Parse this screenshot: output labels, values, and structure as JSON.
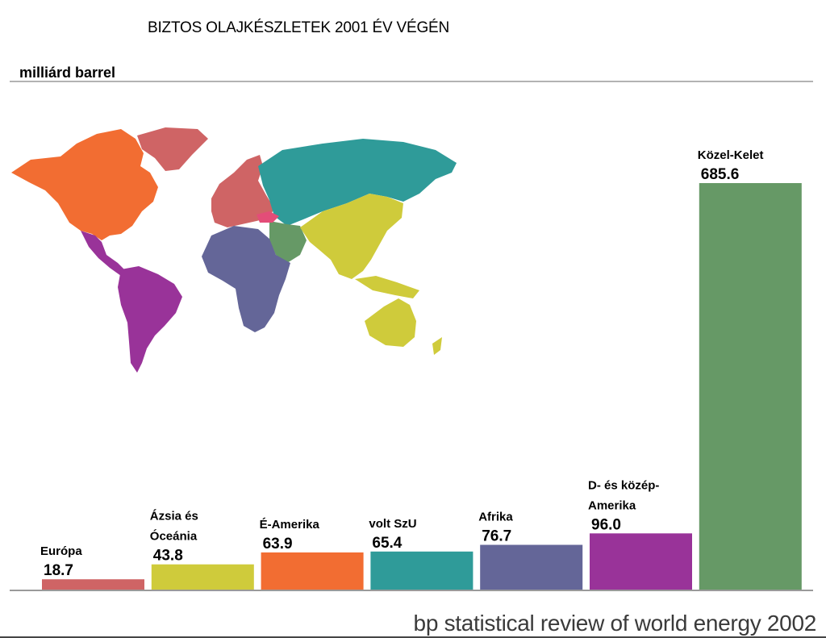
{
  "header": {
    "title": "BIZTOS OLAJKÉSZLETEK 2001 ÉV VÉGÉN",
    "unit_label": "milliárd barrel"
  },
  "footer": {
    "source": "bp statistical review of world energy 2002"
  },
  "map": {
    "icon_name": "world-map-regions"
  },
  "chart_data": {
    "type": "bar",
    "title": "BIZTOS OLAJKÉSZLETEK 2001 ÉV VÉGÉN",
    "ylabel": "milliárd barrel",
    "xlabel": "",
    "ylim": [
      0,
      720
    ],
    "grid": false,
    "legend": "none",
    "categories": [
      [
        "Európa"
      ],
      [
        "Ázsia és",
        "Óceánia"
      ],
      [
        "É-Amerika"
      ],
      [
        "volt SzU"
      ],
      [
        "Afrika"
      ],
      [
        "D- és közép-",
        "Amerika"
      ],
      [
        "Közel-Kelet"
      ]
    ],
    "values": [
      18.7,
      43.8,
      63.9,
      65.4,
      76.7,
      96.0,
      685.6
    ],
    "value_labels": [
      "18.7",
      "43.8",
      "63.9",
      "65.4",
      "76.7",
      "96.0",
      "685.6"
    ],
    "colors": [
      "#cf6465",
      "#cfcb3b",
      "#f26d32",
      "#2f9b99",
      "#646698",
      "#993399",
      "#669966"
    ]
  }
}
